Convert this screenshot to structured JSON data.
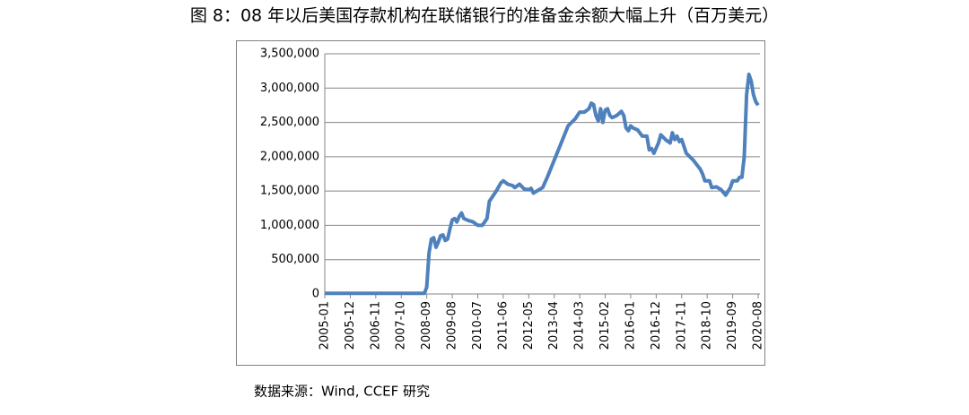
{
  "chart_data": {
    "type": "line",
    "title": "图 8：08 年以后美国存款机构在联储银行的准备金余额大幅上升（百万美元）",
    "source": "数据来源：Wind, CCEF 研究",
    "x": [
      "2005-01",
      "2008-08",
      "2008-09",
      "2008-10",
      "2008-11",
      "2008-12",
      "2009-01",
      "2009-02",
      "2009-03",
      "2009-04",
      "2009-05",
      "2009-06",
      "2009-07",
      "2009-08",
      "2009-09",
      "2009-10",
      "2009-11",
      "2009-12",
      "2010-01",
      "2010-03",
      "2010-05",
      "2010-07",
      "2010-09",
      "2010-10",
      "2010-11",
      "2010-12",
      "2011-03",
      "2011-05",
      "2011-06",
      "2011-08",
      "2011-10",
      "2011-11",
      "2012-01",
      "2012-03",
      "2012-05",
      "2012-06",
      "2012-07",
      "2012-09",
      "2012-11",
      "2013-01",
      "2013-04",
      "2013-07",
      "2013-10",
      "2014-01",
      "2014-03",
      "2014-05",
      "2014-07",
      "2014-08",
      "2014-09",
      "2014-10",
      "2014-11",
      "2014-12",
      "2015-01",
      "2015-02",
      "2015-03",
      "2015-04",
      "2015-05",
      "2015-07",
      "2015-09",
      "2015-10",
      "2015-11",
      "2015-12",
      "2016-01",
      "2016-02",
      "2016-04",
      "2016-06",
      "2016-08",
      "2016-09",
      "2016-10",
      "2016-11",
      "2017-01",
      "2017-02",
      "2017-04",
      "2017-06",
      "2017-07",
      "2017-08",
      "2017-09",
      "2017-10",
      "2017-11",
      "2018-01",
      "2018-04",
      "2018-07",
      "2018-08",
      "2018-09",
      "2018-11",
      "2018-12",
      "2019-02",
      "2019-04",
      "2019-05",
      "2019-06",
      "2019-08",
      "2019-09",
      "2019-11",
      "2019-12",
      "2020-01",
      "2020-02",
      "2020-03",
      "2020-04",
      "2020-05",
      "2020-06",
      "2020-07",
      "2020-08"
    ],
    "series": [
      {
        "name": "准备金余额",
        "color": "#4f81bd",
        "values": [
          10000,
          10000,
          100000,
          600000,
          800000,
          820000,
          680000,
          760000,
          850000,
          860000,
          780000,
          800000,
          950000,
          1080000,
          1100000,
          1050000,
          1130000,
          1180000,
          1100000,
          1070000,
          1050000,
          1000000,
          1000000,
          1050000,
          1100000,
          1350000,
          1500000,
          1620000,
          1650000,
          1600000,
          1580000,
          1550000,
          1600000,
          1530000,
          1520000,
          1540000,
          1470000,
          1510000,
          1550000,
          1700000,
          1950000,
          2200000,
          2450000,
          2550000,
          2650000,
          2650000,
          2700000,
          2780000,
          2760000,
          2600000,
          2520000,
          2700000,
          2500000,
          2680000,
          2700000,
          2600000,
          2570000,
          2600000,
          2660000,
          2600000,
          2420000,
          2380000,
          2450000,
          2420000,
          2390000,
          2300000,
          2300000,
          2100000,
          2120000,
          2050000,
          2200000,
          2320000,
          2250000,
          2200000,
          2350000,
          2250000,
          2300000,
          2220000,
          2250000,
          2050000,
          1950000,
          1820000,
          1750000,
          1650000,
          1650000,
          1550000,
          1560000,
          1520000,
          1480000,
          1440000,
          1550000,
          1650000,
          1650000,
          1700000,
          1700000,
          2000000,
          2900000,
          3200000,
          3100000,
          2900000,
          2800000,
          2750000
        ]
      }
    ],
    "xlim": [
      "2005-01",
      "2020-08"
    ],
    "xticks": [
      "2005-01",
      "2005-12",
      "2006-11",
      "2007-10",
      "2008-09",
      "2009-08",
      "2010-07",
      "2011-06",
      "2012-05",
      "2013-04",
      "2014-03",
      "2015-02",
      "2016-01",
      "2016-12",
      "2017-11",
      "2018-10",
      "2019-09",
      "2020-08"
    ],
    "ylim": [
      0,
      3500000
    ],
    "yticks": [
      {
        "value": 0,
        "label": "0"
      },
      {
        "value": 500000,
        "label": "500,000"
      },
      {
        "value": 1000000,
        "label": "1,000,000"
      },
      {
        "value": 1500000,
        "label": "1,500,000"
      },
      {
        "value": 2000000,
        "label": "2,000,000"
      },
      {
        "value": 2500000,
        "label": "2,500,000"
      },
      {
        "value": 3000000,
        "label": "3,000,000"
      },
      {
        "value": 3500000,
        "label": "3,500,000"
      }
    ],
    "grid": true
  }
}
